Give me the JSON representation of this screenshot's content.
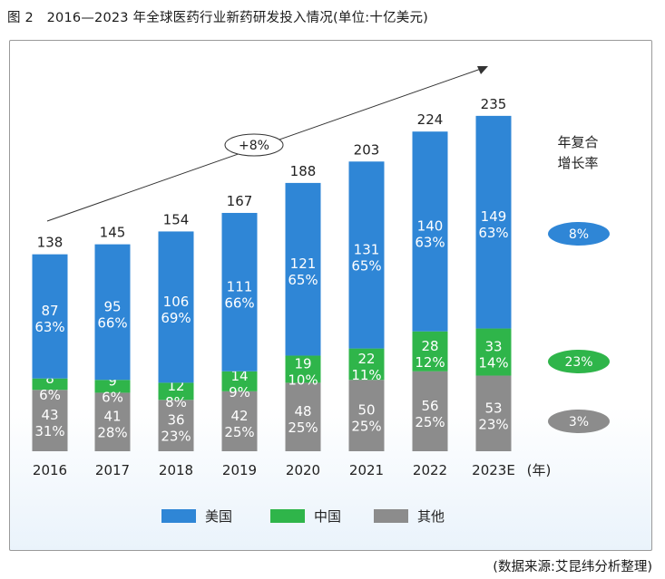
{
  "title": "图 2　2016—2023 年全球医药行业新药研发投入情况(单位:十亿美元)",
  "source": "(数据来源:艾昆纬分析整理)",
  "chart_data": {
    "type": "bar",
    "stacked": true,
    "categories": [
      "2016",
      "2017",
      "2018",
      "2019",
      "2020",
      "2021",
      "2022",
      "2023E"
    ],
    "x_unit": "(年)",
    "totals": [
      138,
      145,
      154,
      167,
      188,
      203,
      224,
      235
    ],
    "series": [
      {
        "name": "其他",
        "color": "#8c8c8c",
        "values": [
          43,
          41,
          36,
          42,
          48,
          50,
          56,
          53
        ],
        "percents": [
          "31%",
          "28%",
          "23%",
          "25%",
          "25%",
          "25%",
          "25%",
          "23%"
        ]
      },
      {
        "name": "中国",
        "color": "#2fb54a",
        "values": [
          8,
          9,
          12,
          14,
          19,
          22,
          28,
          33
        ],
        "percents": [
          "6%",
          "6%",
          "8%",
          "9%",
          "10%",
          "11%",
          "12%",
          "14%"
        ]
      },
      {
        "name": "美国",
        "color": "#2f86d6",
        "values": [
          87,
          95,
          106,
          111,
          121,
          131,
          140,
          149
        ],
        "percents": [
          "63%",
          "66%",
          "69%",
          "66%",
          "65%",
          "65%",
          "63%",
          "63%"
        ]
      }
    ],
    "trend_label": "+8%",
    "cagr_title": [
      "年复合",
      "增长率"
    ],
    "cagr": [
      {
        "series": "美国",
        "value": "8%",
        "color": "#2f86d6"
      },
      {
        "series": "中国",
        "value": "23%",
        "color": "#2fb54a"
      },
      {
        "series": "其他",
        "value": "3%",
        "color": "#8c8c8c"
      }
    ],
    "legend": [
      {
        "name": "美国",
        "color": "#2f86d6"
      },
      {
        "name": "中国",
        "color": "#2fb54a"
      },
      {
        "name": "其他",
        "color": "#8c8c8c"
      }
    ],
    "ylim": [
      0,
      250
    ],
    "grid": false,
    "legend_position": "bottom"
  }
}
